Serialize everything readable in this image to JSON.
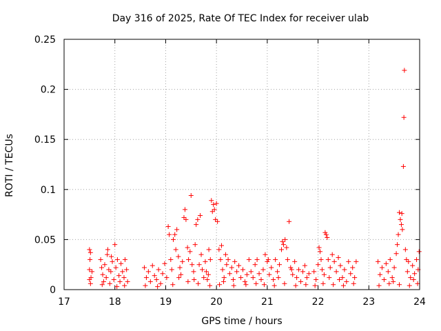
{
  "chart_data": {
    "type": "scatter",
    "title": "Day 316 of 2025, Rate Of TEC Index for receiver ulab",
    "xlabel": "GPS time / hours",
    "ylabel": "ROTI / TECUs",
    "xlim": [
      17,
      24
    ],
    "ylim": [
      0,
      0.25
    ],
    "xticks": [
      "17",
      "18",
      "19",
      "20",
      "21",
      "22",
      "23",
      "24"
    ],
    "yticks": [
      "0",
      "0.05",
      "0.1",
      "0.15",
      "0.2",
      "0.25"
    ],
    "grid": true,
    "legend": "none",
    "marker": "plus",
    "color": "#ff0000",
    "series": [
      {
        "points": [
          [
            17.5,
            0.04
          ],
          [
            17.52,
            0.037
          ],
          [
            17.51,
            0.03
          ],
          [
            17.5,
            0.02
          ],
          [
            17.53,
            0.012
          ],
          [
            17.52,
            0.006
          ],
          [
            17.55,
            0.018
          ],
          [
            17.5,
            0.01
          ],
          [
            17.72,
            0.03
          ],
          [
            17.74,
            0.022
          ],
          [
            17.76,
            0.015
          ],
          [
            17.78,
            0.008
          ],
          [
            17.8,
            0.025
          ],
          [
            17.83,
            0.012
          ],
          [
            17.85,
            0.035
          ],
          [
            17.88,
            0.02
          ],
          [
            17.9,
            0.006
          ],
          [
            17.92,
            0.018
          ],
          [
            17.95,
            0.028
          ],
          [
            17.98,
            0.01
          ],
          [
            18.0,
            0.045
          ],
          [
            18.02,
            0.022
          ],
          [
            18.05,
            0.03
          ],
          [
            18.08,
            0.014
          ],
          [
            18.1,
            0.008
          ],
          [
            18.12,
            0.026
          ],
          [
            18.15,
            0.018
          ],
          [
            18.18,
            0.012
          ],
          [
            18.2,
            0.03
          ],
          [
            18.23,
            0.02
          ],
          [
            18.25,
            0.008
          ],
          [
            17.86,
            0.04
          ],
          [
            17.75,
            0.005
          ],
          [
            18.04,
            0.003
          ],
          [
            18.19,
            0.004
          ],
          [
            17.93,
            0.033
          ],
          [
            18.58,
            0.022
          ],
          [
            18.62,
            0.012
          ],
          [
            18.66,
            0.018
          ],
          [
            18.7,
            0.008
          ],
          [
            18.74,
            0.024
          ],
          [
            18.78,
            0.014
          ],
          [
            18.82,
            0.01
          ],
          [
            18.86,
            0.02
          ],
          [
            18.9,
            0.006
          ],
          [
            18.94,
            0.016
          ],
          [
            18.98,
            0.026
          ],
          [
            19.02,
            0.012
          ],
          [
            19.05,
            0.063
          ],
          [
            19.07,
            0.055
          ],
          [
            19.1,
            0.03
          ],
          [
            19.12,
            0.02
          ],
          [
            19.15,
            0.05
          ],
          [
            19.18,
            0.055
          ],
          [
            19.2,
            0.04
          ],
          [
            19.22,
            0.06
          ],
          [
            19.25,
            0.033
          ],
          [
            19.28,
            0.022
          ],
          [
            19.3,
            0.015
          ],
          [
            19.33,
            0.028
          ],
          [
            19.36,
            0.072
          ],
          [
            19.38,
            0.08
          ],
          [
            19.4,
            0.07
          ],
          [
            19.43,
            0.042
          ],
          [
            19.45,
            0.03
          ],
          [
            19.48,
            0.038
          ],
          [
            19.5,
            0.094
          ],
          [
            19.52,
            0.025
          ],
          [
            19.55,
            0.018
          ],
          [
            19.58,
            0.045
          ],
          [
            19.6,
            0.065
          ],
          [
            19.63,
            0.07
          ],
          [
            19.66,
            0.025
          ],
          [
            19.68,
            0.074
          ],
          [
            19.7,
            0.035
          ],
          [
            19.72,
            0.02
          ],
          [
            19.75,
            0.012
          ],
          [
            19.78,
            0.028
          ],
          [
            19.8,
            0.018
          ],
          [
            19.82,
            0.01
          ],
          [
            19.85,
            0.04
          ],
          [
            19.88,
            0.03
          ],
          [
            19.9,
            0.089
          ],
          [
            19.92,
            0.078
          ],
          [
            19.94,
            0.085
          ],
          [
            19.96,
            0.08
          ],
          [
            19.98,
            0.07
          ],
          [
            20.0,
            0.086
          ],
          [
            20.02,
            0.068
          ],
          [
            20.05,
            0.04
          ],
          [
            20.08,
            0.03
          ],
          [
            20.1,
            0.044
          ],
          [
            20.12,
            0.02
          ],
          [
            20.15,
            0.012
          ],
          [
            20.18,
            0.035
          ],
          [
            20.2,
            0.025
          ],
          [
            20.23,
            0.03
          ],
          [
            20.26,
            0.016
          ],
          [
            20.3,
            0.022
          ],
          [
            20.33,
            0.01
          ],
          [
            20.36,
            0.028
          ],
          [
            20.4,
            0.018
          ],
          [
            20.44,
            0.024
          ],
          [
            20.48,
            0.012
          ],
          [
            20.52,
            0.02
          ],
          [
            20.56,
            0.008
          ],
          [
            20.6,
            0.015
          ],
          [
            20.64,
            0.03
          ],
          [
            20.68,
            0.018
          ],
          [
            20.72,
            0.012
          ],
          [
            20.76,
            0.025
          ],
          [
            20.8,
            0.03
          ],
          [
            20.84,
            0.016
          ],
          [
            18.6,
            0.004
          ],
          [
            18.84,
            0.003
          ],
          [
            19.14,
            0.005
          ],
          [
            19.44,
            0.008
          ],
          [
            19.64,
            0.006
          ],
          [
            19.87,
            0.004
          ],
          [
            20.06,
            0.005
          ],
          [
            20.34,
            0.004
          ],
          [
            20.58,
            0.005
          ],
          [
            20.78,
            0.006
          ],
          [
            19.26,
            0.012
          ],
          [
            19.56,
            0.01
          ],
          [
            19.84,
            0.015
          ],
          [
            20.14,
            0.008
          ],
          [
            20.88,
            0.01
          ],
          [
            20.92,
            0.02
          ],
          [
            20.96,
            0.035
          ],
          [
            21.0,
            0.028
          ],
          [
            21.04,
            0.015
          ],
          [
            21.08,
            0.022
          ],
          [
            21.12,
            0.01
          ],
          [
            21.16,
            0.03
          ],
          [
            21.2,
            0.018
          ],
          [
            21.24,
            0.025
          ],
          [
            21.28,
            0.04
          ],
          [
            21.3,
            0.048
          ],
          [
            21.32,
            0.045
          ],
          [
            21.35,
            0.05
          ],
          [
            21.38,
            0.042
          ],
          [
            21.4,
            0.03
          ],
          [
            21.43,
            0.068
          ],
          [
            21.46,
            0.022
          ],
          [
            21.5,
            0.015
          ],
          [
            21.54,
            0.028
          ],
          [
            21.58,
            0.012
          ],
          [
            21.62,
            0.02
          ],
          [
            21.66,
            0.008
          ],
          [
            21.7,
            0.018
          ],
          [
            21.74,
            0.024
          ],
          [
            21.78,
            0.012
          ],
          [
            21.82,
            0.016
          ],
          [
            20.94,
            0.005
          ],
          [
            21.14,
            0.004
          ],
          [
            21.34,
            0.006
          ],
          [
            21.56,
            0.004
          ],
          [
            21.76,
            0.005
          ],
          [
            21.02,
            0.03
          ],
          [
            21.22,
            0.012
          ],
          [
            21.48,
            0.02
          ],
          [
            21.92,
            0.018
          ],
          [
            21.96,
            0.01
          ],
          [
            22.0,
            0.025
          ],
          [
            22.02,
            0.042
          ],
          [
            22.04,
            0.038
          ],
          [
            22.06,
            0.03
          ],
          [
            22.08,
            0.02
          ],
          [
            22.12,
            0.015
          ],
          [
            22.14,
            0.057
          ],
          [
            22.16,
            0.055
          ],
          [
            22.18,
            0.052
          ],
          [
            22.2,
            0.03
          ],
          [
            22.24,
            0.022
          ],
          [
            22.28,
            0.035
          ],
          [
            22.32,
            0.028
          ],
          [
            22.36,
            0.018
          ],
          [
            22.4,
            0.032
          ],
          [
            22.44,
            0.024
          ],
          [
            22.48,
            0.012
          ],
          [
            22.52,
            0.02
          ],
          [
            22.56,
            0.008
          ],
          [
            22.6,
            0.028
          ],
          [
            22.64,
            0.016
          ],
          [
            22.68,
            0.022
          ],
          [
            22.72,
            0.012
          ],
          [
            22.75,
            0.028
          ],
          [
            21.94,
            0.004
          ],
          [
            22.1,
            0.006
          ],
          [
            22.3,
            0.005
          ],
          [
            22.5,
            0.004
          ],
          [
            22.7,
            0.006
          ],
          [
            22.22,
            0.012
          ],
          [
            22.42,
            0.01
          ],
          [
            23.18,
            0.028
          ],
          [
            23.22,
            0.015
          ],
          [
            23.26,
            0.022
          ],
          [
            23.3,
            0.01
          ],
          [
            23.34,
            0.026
          ],
          [
            23.38,
            0.018
          ],
          [
            23.42,
            0.03
          ],
          [
            23.46,
            0.012
          ],
          [
            23.5,
            0.022
          ],
          [
            23.54,
            0.036
          ],
          [
            23.56,
            0.045
          ],
          [
            23.58,
            0.055
          ],
          [
            23.6,
            0.077
          ],
          [
            23.62,
            0.07
          ],
          [
            23.64,
            0.065
          ],
          [
            23.65,
            0.076
          ],
          [
            23.66,
            0.06
          ],
          [
            23.68,
            0.123
          ],
          [
            23.69,
            0.172
          ],
          [
            23.7,
            0.219
          ],
          [
            23.72,
            0.04
          ],
          [
            23.74,
            0.03
          ],
          [
            23.76,
            0.018
          ],
          [
            23.78,
            0.028
          ],
          [
            23.82,
            0.012
          ],
          [
            23.86,
            0.024
          ],
          [
            23.9,
            0.016
          ],
          [
            23.94,
            0.03
          ],
          [
            23.97,
            0.02
          ],
          [
            23.99,
            0.038
          ],
          [
            23.2,
            0.004
          ],
          [
            23.4,
            0.006
          ],
          [
            23.6,
            0.005
          ],
          [
            23.8,
            0.004
          ],
          [
            23.96,
            0.006
          ],
          [
            23.48,
            0.008
          ],
          [
            23.88,
            0.01
          ]
        ]
      }
    ]
  }
}
